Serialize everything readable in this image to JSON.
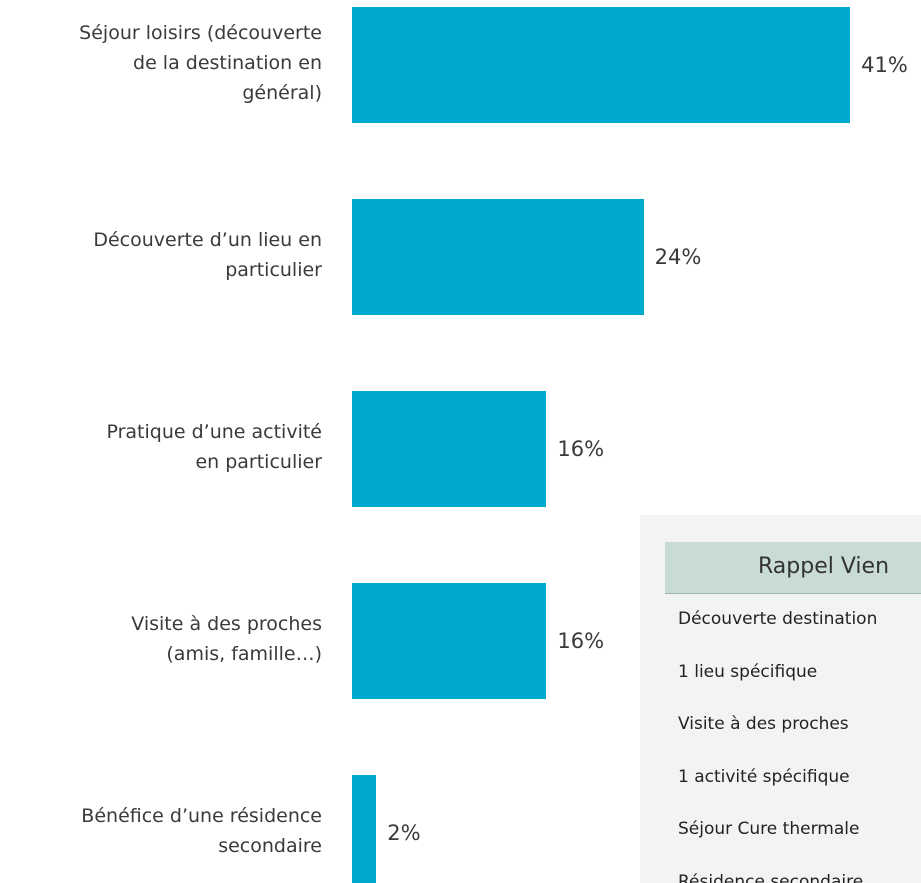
{
  "chart_data": {
    "type": "bar",
    "orientation": "horizontal",
    "color": "#00a9ce",
    "categories": [
      "Séjour loisirs (découverte\nde la destination en\ngénéral)",
      "Découverte d’un lieu en\nparticulier",
      "Pratique d’une activité\nen particulier",
      "Visite à des proches\n(amis, famille…)",
      "Bénéfice d’une résidence\nsecondaire"
    ],
    "values": [
      41,
      24,
      16,
      16,
      2
    ],
    "value_labels": [
      "41%",
      "24%",
      "16%",
      "16%",
      "2%"
    ]
  },
  "inset": {
    "title": "Rappel Vien",
    "rows": [
      "Découverte destination",
      "1 lieu spécifique",
      "Visite à des proches",
      "1 activité spécifique",
      "Séjour Cure thermale",
      "Résidence secondaire"
    ]
  }
}
